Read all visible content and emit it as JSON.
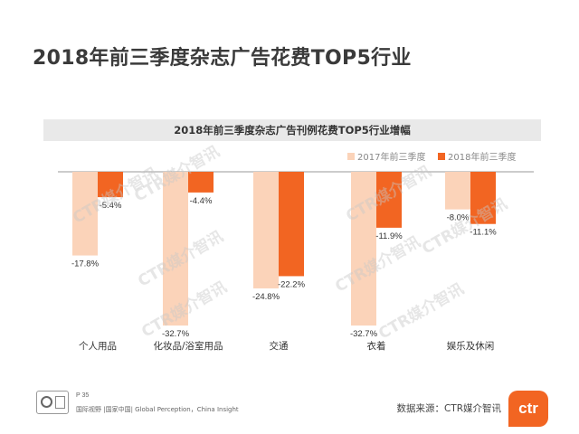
{
  "page": {
    "title": "2018年前三季度杂志广告花费TOP5行业",
    "page_number": "P 35",
    "footer_tag": "国际视野 |国家中国| Global Perception，China Insight",
    "source": "数据来源：CTR媒介智讯",
    "logo_text": "ctr",
    "watermark": "CTR媒介智讯"
  },
  "colors": {
    "series_2017": "#fbd3b9",
    "series_2018": "#f26522",
    "axis": "#999999"
  },
  "chart_data": {
    "type": "bar",
    "title": "2018年前三季度杂志广告刊例花费TOP5行业增幅",
    "categories": [
      "个人用品",
      "化妆品/浴室用品",
      "交通",
      "衣着",
      "娱乐及休闲"
    ],
    "series": [
      {
        "name": "2017年前三季度",
        "values": [
          -17.8,
          -32.7,
          -24.8,
          -32.7,
          -8.0
        ],
        "labels": [
          "-17.8%",
          "-32.7%",
          "-24.8%",
          "-32.7%",
          "-8.0%"
        ]
      },
      {
        "name": "2018年前三季度",
        "values": [
          -5.4,
          -4.4,
          -22.2,
          -11.9,
          -11.1
        ],
        "labels": [
          "-5.4%",
          "-4.4%",
          "-22.2%",
          "-11.9%",
          "-11.1%"
        ]
      }
    ],
    "legend_position": "top-right",
    "grid": false,
    "ylim": [
      -35,
      0
    ]
  }
}
